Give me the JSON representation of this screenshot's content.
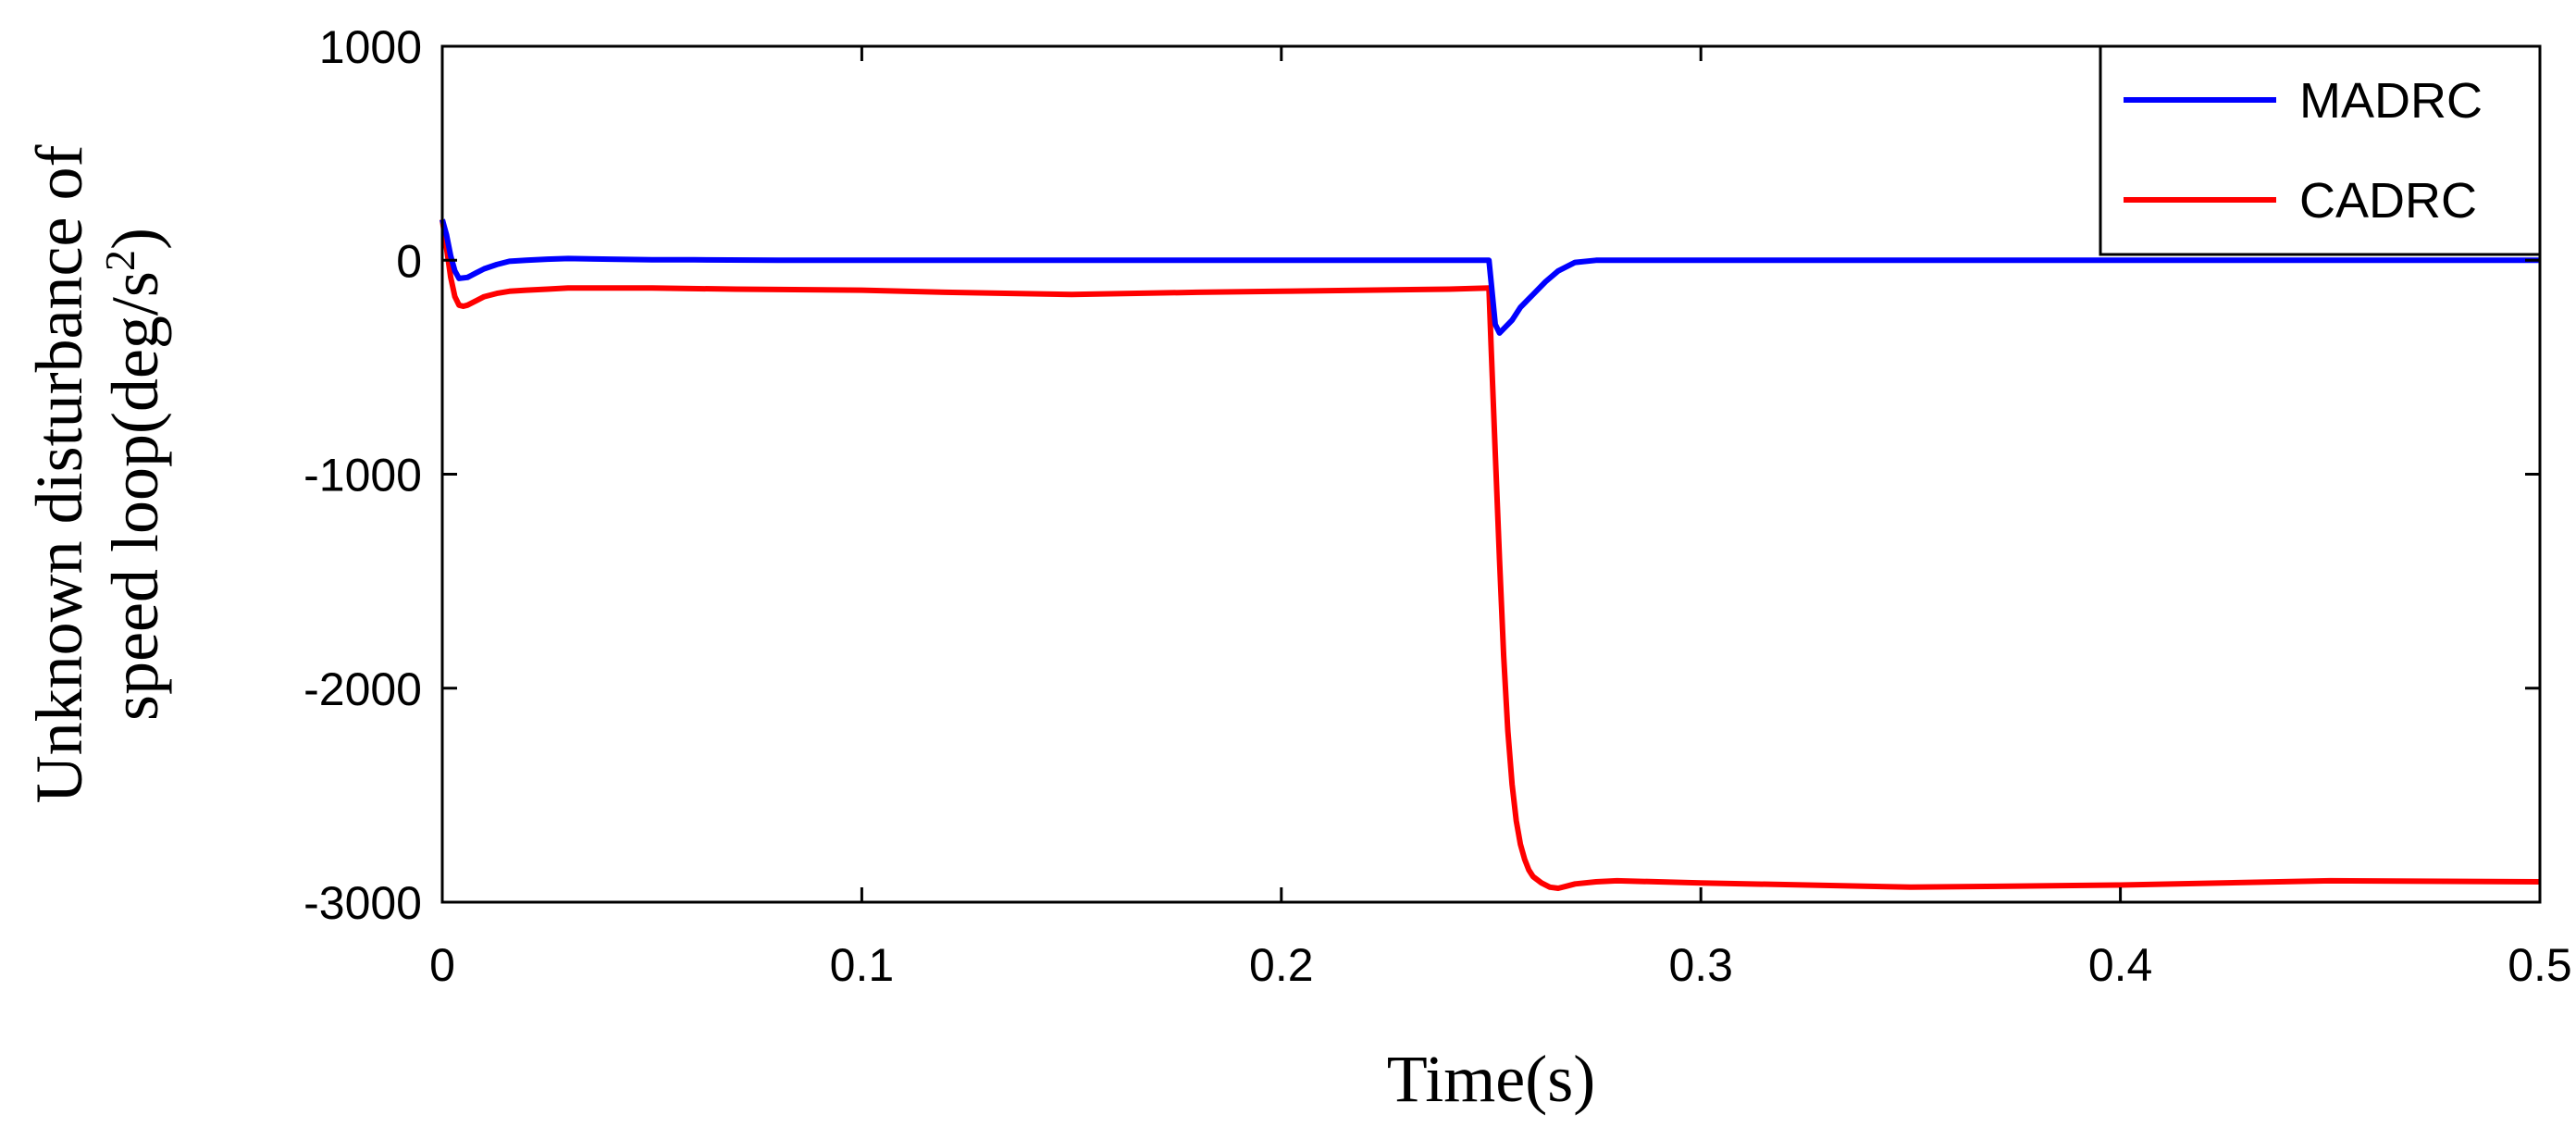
{
  "chart_data": {
    "type": "line",
    "xlabel": "Time(s)",
    "ylabel_line1": "Unknown disturbance of",
    "ylabel_line2_prefix": "speed loop(deg/s",
    "ylabel_line2_sup": "2",
    "ylabel_line2_suffix": ")",
    "xlim": [
      0,
      0.5
    ],
    "ylim": [
      -3000,
      1000
    ],
    "xticks": [
      0,
      0.1,
      0.2,
      0.3,
      0.4,
      0.5
    ],
    "xtick_labels": [
      "0",
      "0.1",
      "0.2",
      "0.3",
      "0.4",
      "0.5"
    ],
    "yticks": [
      1000,
      0,
      -1000,
      -2000,
      -3000
    ],
    "ytick_labels": [
      "1000",
      "0",
      "-1000",
      "-2000",
      "-3000"
    ],
    "grid": false,
    "legend_position": "top-right",
    "series": [
      {
        "name": "MADRC",
        "color": "#0000ff",
        "x": [
          0,
          0.001,
          0.002,
          0.003,
          0.004,
          0.006,
          0.008,
          0.01,
          0.013,
          0.016,
          0.02,
          0.025,
          0.03,
          0.04,
          0.05,
          0.06,
          0.08,
          0.1,
          0.12,
          0.15,
          0.18,
          0.2,
          0.22,
          0.24,
          0.248,
          0.2495,
          0.25,
          0.251,
          0.252,
          0.253,
          0.255,
          0.257,
          0.26,
          0.263,
          0.266,
          0.27,
          0.275,
          0.28,
          0.3,
          0.35,
          0.4,
          0.45,
          0.5
        ],
        "y": [
          190,
          120,
          20,
          -50,
          -85,
          -80,
          -60,
          -40,
          -20,
          -5,
          0,
          5,
          8,
          5,
          2,
          2,
          0,
          0,
          0,
          0,
          0,
          0,
          0,
          0,
          0,
          0,
          -100,
          -300,
          -340,
          -320,
          -280,
          -220,
          -160,
          -100,
          -50,
          -10,
          0,
          0,
          0,
          0,
          0,
          0,
          0
        ]
      },
      {
        "name": "CADRC",
        "color": "#ff0000",
        "x": [
          0,
          0.001,
          0.002,
          0.003,
          0.004,
          0.005,
          0.006,
          0.008,
          0.01,
          0.013,
          0.016,
          0.02,
          0.025,
          0.03,
          0.04,
          0.05,
          0.07,
          0.1,
          0.12,
          0.15,
          0.18,
          0.2,
          0.22,
          0.24,
          0.2495,
          0.25,
          0.251,
          0.252,
          0.253,
          0.254,
          0.255,
          0.256,
          0.257,
          0.258,
          0.259,
          0.26,
          0.262,
          0.264,
          0.266,
          0.268,
          0.27,
          0.275,
          0.28,
          0.3,
          0.35,
          0.4,
          0.45,
          0.5
        ],
        "y": [
          190,
          60,
          -80,
          -170,
          -210,
          -215,
          -210,
          -190,
          -170,
          -155,
          -145,
          -140,
          -135,
          -130,
          -130,
          -130,
          -135,
          -140,
          -150,
          -160,
          -150,
          -145,
          -140,
          -135,
          -130,
          -400,
          -900,
          -1400,
          -1850,
          -2200,
          -2450,
          -2620,
          -2730,
          -2800,
          -2850,
          -2880,
          -2910,
          -2930,
          -2935,
          -2925,
          -2915,
          -2905,
          -2900,
          -2910,
          -2930,
          -2920,
          -2900,
          -2905
        ]
      }
    ]
  }
}
